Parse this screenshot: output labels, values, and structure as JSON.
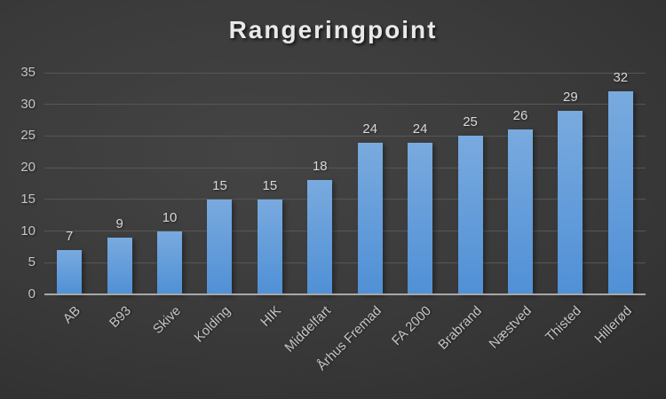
{
  "chart_data": {
    "type": "bar",
    "title": "Rangeringpoint",
    "categories": [
      "AB",
      "B93",
      "Skive",
      "Kolding",
      "HIK",
      "Middelfart",
      "Århus Fremad",
      "FA 2000",
      "Brabrand",
      "Næstved",
      "Thisted",
      "Hillerød"
    ],
    "values": [
      7,
      9,
      10,
      15,
      15,
      18,
      24,
      24,
      25,
      26,
      29,
      32
    ],
    "xlabel": "",
    "ylabel": "",
    "ylim": [
      0,
      35
    ],
    "yticks": [
      0,
      5,
      10,
      15,
      20,
      25,
      30,
      35
    ],
    "grid": true,
    "legend": false,
    "data_labels": true
  },
  "colors": {
    "background_center": "#444444",
    "background_edge": "#242424",
    "bar_top": "#79aade",
    "bar_bottom": "#5090d6",
    "gridline": "#575757",
    "axis_line": "#a8a8a8",
    "title_text": "#e9e9e9",
    "tick_text": "#c5c5c5",
    "data_label_text": "#d8d8d8"
  }
}
